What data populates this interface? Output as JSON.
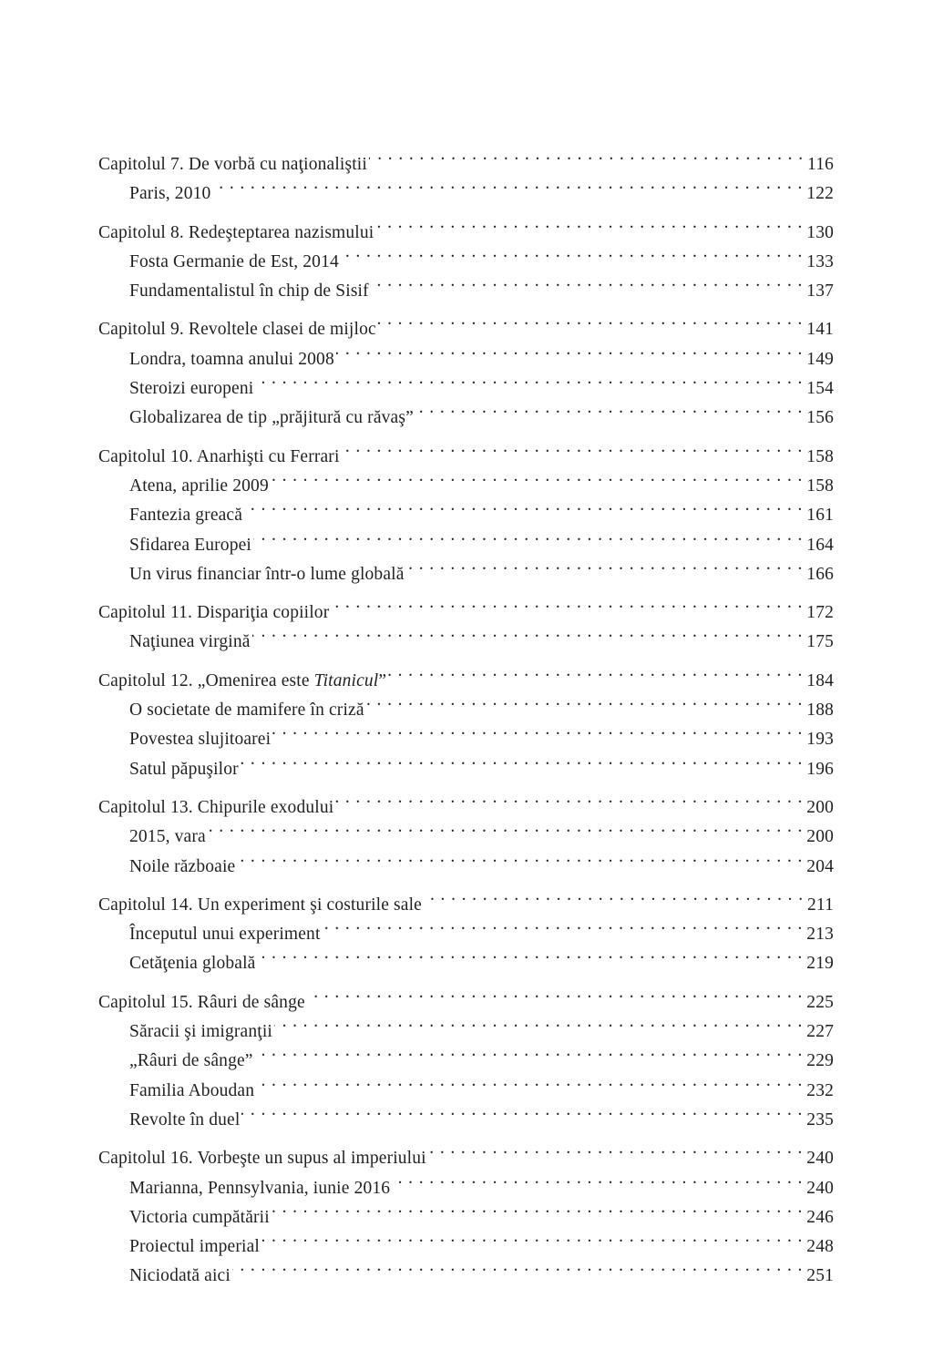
{
  "toc": [
    {
      "chapter": {
        "title": "Capitolul 7. De vorbă cu naţionaliştii",
        "page": "116"
      },
      "sections": [
        {
          "title": "Paris, 2010",
          "page": "122"
        }
      ]
    },
    {
      "chapter": {
        "title": "Capitolul 8. Redeşteptarea nazismului",
        "page": "130"
      },
      "sections": [
        {
          "title": "Fosta Germanie de Est, 2014",
          "page": "133"
        },
        {
          "title": "Fundamentalistul în chip de Sisif",
          "page": "137"
        }
      ]
    },
    {
      "chapter": {
        "title": "Capitolul 9. Revoltele clasei de mijloc",
        "page": "141"
      },
      "sections": [
        {
          "title": "Londra, toamna anului 2008",
          "page": "149"
        },
        {
          "title": "Steroizi europeni",
          "page": "154"
        },
        {
          "title": "Globalizarea de tip „prăjitură cu răvaş”",
          "page": "156"
        }
      ]
    },
    {
      "chapter": {
        "title": "Capitolul 10. Anarhişti cu Ferrari",
        "page": "158"
      },
      "sections": [
        {
          "title": "Atena, aprilie 2009",
          "page": "158"
        },
        {
          "title": "Fantezia greacă",
          "page": "161"
        },
        {
          "title": "Sfidarea Europei",
          "page": "164"
        },
        {
          "title": "Un virus financiar într-o lume globală",
          "page": "166"
        }
      ]
    },
    {
      "chapter": {
        "title": "Capitolul 11. Dispariţia copiilor",
        "page": "172"
      },
      "sections": [
        {
          "title": "Naţiunea virgină",
          "page": "175"
        }
      ]
    },
    {
      "chapter": {
        "title": "Capitolul 12. „Omenirea este ",
        "title_italic": "Titanicul",
        "title_suffix": "”",
        "page": "184"
      },
      "sections": [
        {
          "title": "O societate de mamifere în criză",
          "page": "188"
        },
        {
          "title": "Povestea slujitoarei",
          "page": "193"
        },
        {
          "title": "Satul păpuşilor",
          "page": "196"
        }
      ]
    },
    {
      "chapter": {
        "title": "Capitolul 13. Chipurile exodului",
        "page": "200"
      },
      "sections": [
        {
          "title": "2015, vara",
          "page": "200"
        },
        {
          "title": "Noile războaie",
          "page": "204"
        }
      ]
    },
    {
      "chapter": {
        "title": "Capitolul 14. Un experiment şi costurile sale",
        "page": "211"
      },
      "sections": [
        {
          "title": "Începutul unui experiment",
          "page": "213"
        },
        {
          "title": "Cetăţenia globală",
          "page": "219"
        }
      ]
    },
    {
      "chapter": {
        "title": "Capitolul 15. Râuri de sânge",
        "page": "225"
      },
      "sections": [
        {
          "title": "Săracii şi imigranţii",
          "page": "227"
        },
        {
          "title": "„Râuri de sânge”",
          "page": "229"
        },
        {
          "title": "Familia Aboudan",
          "page": "232"
        },
        {
          "title": "Revolte în duel",
          "page": "235"
        }
      ]
    },
    {
      "chapter": {
        "title": "Capitolul 16. Vorbeşte un supus al imperiului",
        "page": "240"
      },
      "sections": [
        {
          "title": "Marianna, Pennsylvania, iunie 2016",
          "page": "240"
        },
        {
          "title": "Victoria cumpătării",
          "page": "246"
        },
        {
          "title": "Proiectul imperial",
          "page": "248"
        },
        {
          "title": "Niciodată aici",
          "page": "251"
        }
      ]
    }
  ]
}
